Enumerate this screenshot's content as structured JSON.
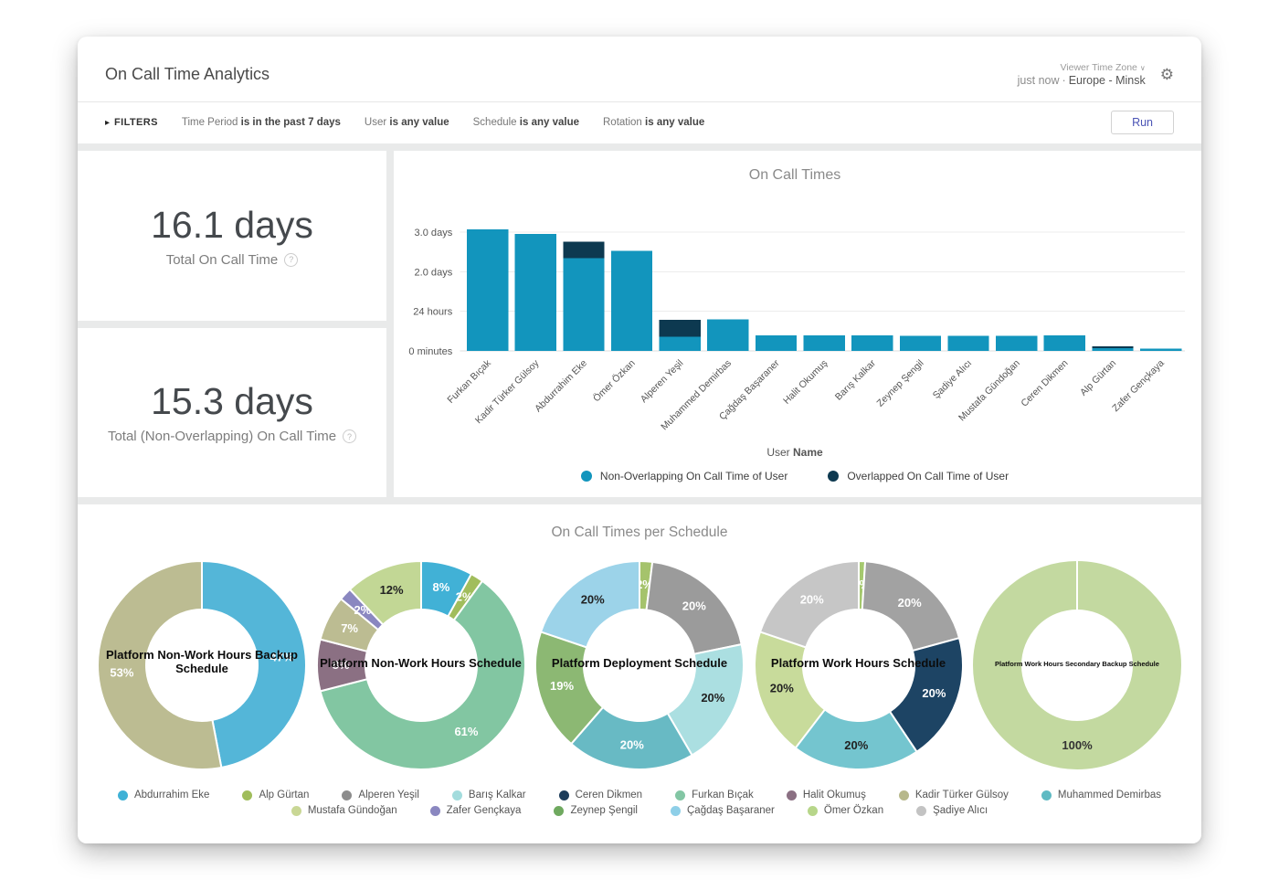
{
  "header": {
    "title": "On Call Time Analytics",
    "updated": "just now",
    "dot_separator": "·",
    "timezone_label": "Viewer Time Zone",
    "timezone_chevron": "∨",
    "timezone_value": "Europe - Minsk",
    "gear_icon": "⚙"
  },
  "filters": {
    "caret_icon": "▸",
    "label": "FILTERS",
    "items": [
      {
        "field": "Time Period ",
        "value": "is in the past 7 days"
      },
      {
        "field": "User ",
        "value": "is any value"
      },
      {
        "field": "Schedule ",
        "value": "is any value"
      },
      {
        "field": "Rotation ",
        "value": "is any value"
      }
    ],
    "run_label": "Run"
  },
  "stats": [
    {
      "value": "16.1 days",
      "label": "Total On Call Time",
      "help_icon": "?"
    },
    {
      "value": "15.3 days",
      "label": "Total (Non-Overlapping) On Call Time",
      "help_icon": "?"
    }
  ],
  "schedules_section": {
    "title": "On Call Times per Schedule"
  },
  "chart_data": [
    {
      "type": "bar",
      "title": "On Call Times",
      "xlabel_normal": "User ",
      "xlabel_bold": "Name",
      "stacked": true,
      "grid": true,
      "legend_position": "bottom",
      "ylim_days": [
        0,
        3.3
      ],
      "y_ticks": [
        {
          "label": "0 minutes",
          "value": 0
        },
        {
          "label": "24 hours",
          "value": 1
        },
        {
          "label": "2.0 days",
          "value": 2
        },
        {
          "label": "3.0 days",
          "value": 3
        }
      ],
      "categories": [
        "Furkan Bıçak",
        "Kadir Türker Gülsoy",
        "Abdurrahim Eke",
        "Ömer Özkan",
        "Alperen Yeşil",
        "Muhammed Demirbas",
        "Çağdaş Başaraner",
        "Halit Okumuş",
        "Barış Kalkar",
        "Zeynep Şengil",
        "Şadiye Alıcı",
        "Mustafa Gündoğan",
        "Ceren Dikmen",
        "Alp Gürtan",
        "Zafer Gençkaya"
      ],
      "series": [
        {
          "name": "Non-Overlapping On Call Time of User",
          "color": "#1295bd",
          "values_days": [
            3.07,
            2.96,
            2.35,
            2.53,
            0.36,
            0.79,
            0.39,
            0.39,
            0.39,
            0.38,
            0.38,
            0.38,
            0.39,
            0.07,
            0.05
          ]
        },
        {
          "name": "Overlapped On Call Time of User",
          "color": "#0d3950",
          "values_days": [
            0,
            0,
            0.41,
            0,
            0.42,
            0,
            0,
            0,
            0,
            0,
            0,
            0,
            0,
            0.04,
            0
          ]
        }
      ]
    },
    {
      "type": "pie",
      "title": "Platform Non-Work Hours Backup Schedule",
      "slices": [
        {
          "pct": 47,
          "color": "#54b6d8",
          "label_color": "#ffffff"
        },
        {
          "pct": 53,
          "color": "#bcbc92",
          "label_color": "#ffffff"
        }
      ]
    },
    {
      "type": "pie",
      "title": "Platform Non-Work Hours Schedule",
      "slices": [
        {
          "pct": 8,
          "color": "#41b1d6",
          "label_color": "#ffffff"
        },
        {
          "pct": 2,
          "color": "#a1bd5c",
          "label_color": "#ffffff"
        },
        {
          "pct": 61,
          "color": "#82c6a2",
          "label_color": "#ffffff"
        },
        {
          "pct": 8,
          "color": "#8b7083",
          "label_color": "#ffffff"
        },
        {
          "pct": 7,
          "color": "#bcbc92",
          "label_color": "#ffffff"
        },
        {
          "pct": 2,
          "color": "#8a87c0",
          "label_color": "#ffffff"
        },
        {
          "pct": 12,
          "color": "#c2d795",
          "label_color": "#222222"
        }
      ]
    },
    {
      "type": "pie",
      "title": "Platform Deployment Schedule",
      "slices": [
        {
          "pct": 2,
          "color": "#a5c36c",
          "label_color": "#ffffff"
        },
        {
          "pct": 20,
          "color": "#9b9b9b",
          "label_color": "#ffffff"
        },
        {
          "pct": 20,
          "color": "#abdfe1",
          "label_color": "#222222"
        },
        {
          "pct": 20,
          "color": "#68bac4",
          "label_color": "#ffffff"
        },
        {
          "pct": 19,
          "color": "#8cb873",
          "label_color": "#ffffff"
        },
        {
          "pct": 20,
          "color": "#9cd3e9",
          "label_color": "#222222"
        }
      ]
    },
    {
      "type": "pie",
      "title": "Platform Work Hours Schedule",
      "slices": [
        {
          "pct": 1,
          "color": "#a5c96e",
          "label_color": "#ffffff"
        },
        {
          "pct": 20,
          "color": "#a2a2a2",
          "label_color": "#ffffff"
        },
        {
          "pct": 20,
          "color": "#1d4464",
          "label_color": "#ffffff"
        },
        {
          "pct": 20,
          "color": "#74c5cf",
          "label_color": "#222222"
        },
        {
          "pct": 20,
          "color": "#c8db9b",
          "label_color": "#222222"
        },
        {
          "pct": 20,
          "color": "#c6c6c6",
          "label_color": "#ffffff"
        }
      ]
    },
    {
      "type": "pie",
      "title": "Platform Work Hours Secondary Backup Schedule",
      "slices": [
        {
          "pct": 100,
          "color": "#c3d9a0",
          "label_color": "#333333"
        }
      ]
    }
  ],
  "user_legend": {
    "rows": [
      [
        {
          "name": "Abdurrahim Eke",
          "color": "#3fb1d6"
        },
        {
          "name": "Alp Gürtan",
          "color": "#a0bd5b"
        },
        {
          "name": "Alperen Yeşil",
          "color": "#8c8c8c"
        },
        {
          "name": "Barış Kalkar",
          "color": "#a3dcdd"
        },
        {
          "name": "Ceren Dikmen",
          "color": "#1c3c5a"
        },
        {
          "name": "Furkan Bıçak",
          "color": "#83c6a4"
        },
        {
          "name": "Halit Okumuş",
          "color": "#8b7083"
        },
        {
          "name": "Kadir Türker Gülsoy",
          "color": "#b7b88b"
        },
        {
          "name": "Muhammed Demirbas",
          "color": "#5fbac3"
        }
      ],
      [
        {
          "name": "Mustafa Gündoğan",
          "color": "#c9d795"
        },
        {
          "name": "Zafer Gençkaya",
          "color": "#8a87c0"
        },
        {
          "name": "Zeynep Şengil",
          "color": "#6fa95f"
        },
        {
          "name": "Çağdaş Başaraner",
          "color": "#8ecfe8"
        },
        {
          "name": "Ömer Özkan",
          "color": "#b7d68a"
        },
        {
          "name": "Şadiye Alıcı",
          "color": "#c3c3c3"
        }
      ]
    ]
  }
}
